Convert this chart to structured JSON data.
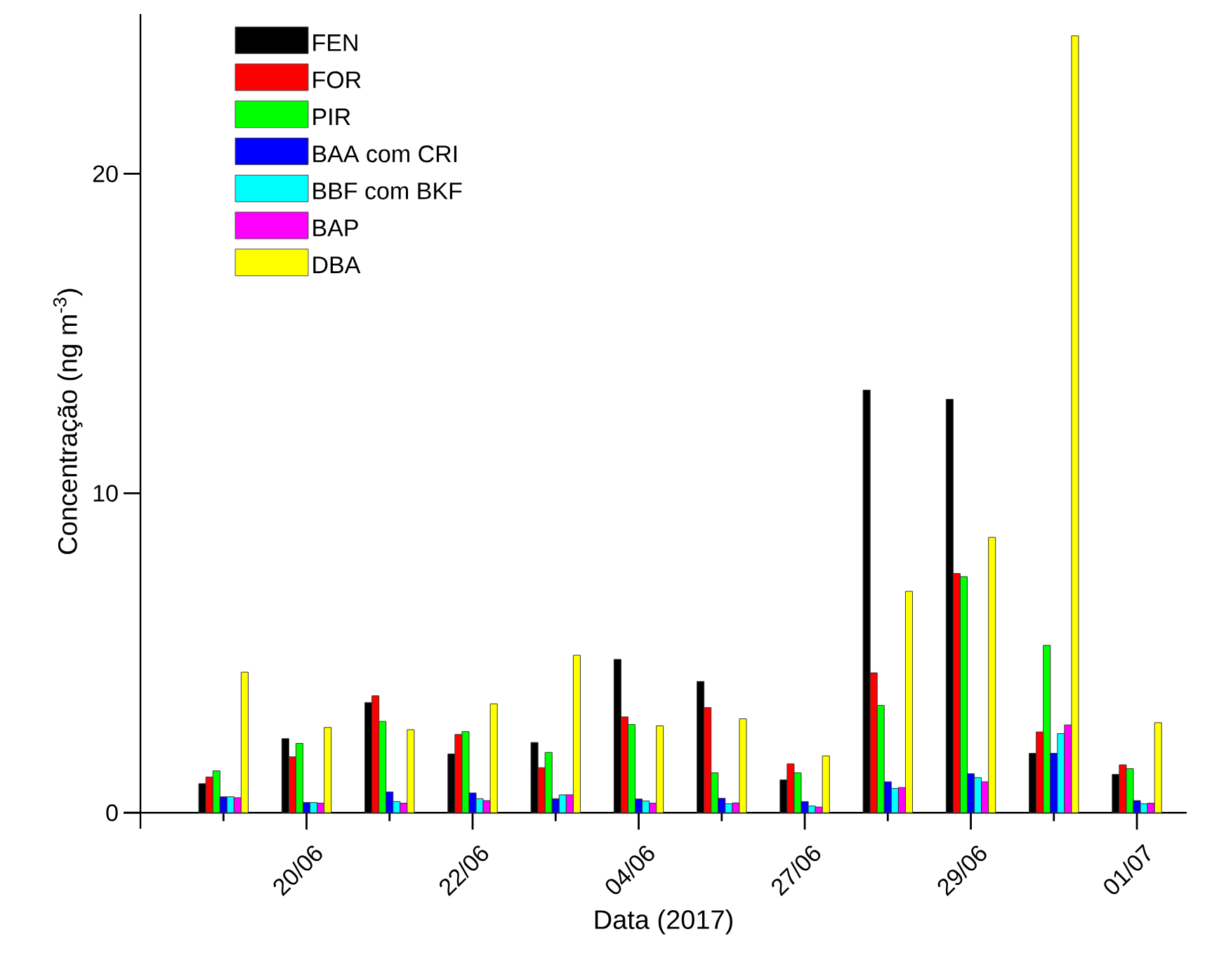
{
  "chart_data": {
    "type": "bar",
    "xlabel": "Data (2017)",
    "ylabel": "Concentração (ng m$^{-3}$)",
    "categories": [
      null,
      "20/06",
      null,
      "22/06",
      null,
      "04/06",
      null,
      "27/06",
      null,
      "29/06",
      null,
      "01/07"
    ],
    "ylim": [
      -0.5,
      25
    ],
    "yticks": [
      0,
      10,
      20
    ],
    "legend": "top left",
    "series": [
      {
        "name": "FEN",
        "color": "#000000",
        "values": [
          0.91,
          2.32,
          3.45,
          1.84,
          2.2,
          4.8,
          4.11,
          1.03,
          13.23,
          12.94,
          1.86,
          1.2
        ]
      },
      {
        "name": "FOR",
        "color": "#ff0000",
        "values": [
          1.12,
          1.75,
          3.66,
          2.45,
          1.41,
          3.0,
          3.29,
          1.53,
          4.38,
          7.49,
          2.53,
          1.5
        ]
      },
      {
        "name": "PIR",
        "color": "#00ff00",
        "values": [
          1.31,
          2.17,
          2.86,
          2.54,
          1.89,
          2.76,
          1.25,
          1.25,
          3.36,
          7.39,
          5.24,
          1.38
        ]
      },
      {
        "name": "BAA com CRI",
        "color": "#0000ff",
        "values": [
          0.5,
          0.32,
          0.65,
          0.62,
          0.44,
          0.43,
          0.45,
          0.35,
          0.97,
          1.22,
          1.86,
          0.38
        ]
      },
      {
        "name": "BBF com BKF",
        "color": "#00ffff",
        "values": [
          0.5,
          0.32,
          0.35,
          0.44,
          0.56,
          0.37,
          0.28,
          0.21,
          0.76,
          1.1,
          2.48,
          0.28
        ]
      },
      {
        "name": "BAP",
        "color": "#ff00ff",
        "values": [
          0.47,
          0.3,
          0.3,
          0.38,
          0.56,
          0.3,
          0.31,
          0.18,
          0.79,
          0.97,
          2.75,
          0.3
        ]
      },
      {
        "name": "DBA",
        "color": "#ffff00",
        "values": [
          4.4,
          2.67,
          2.6,
          3.41,
          4.93,
          2.72,
          2.94,
          1.78,
          6.93,
          8.62,
          24.32,
          2.82
        ]
      }
    ]
  }
}
